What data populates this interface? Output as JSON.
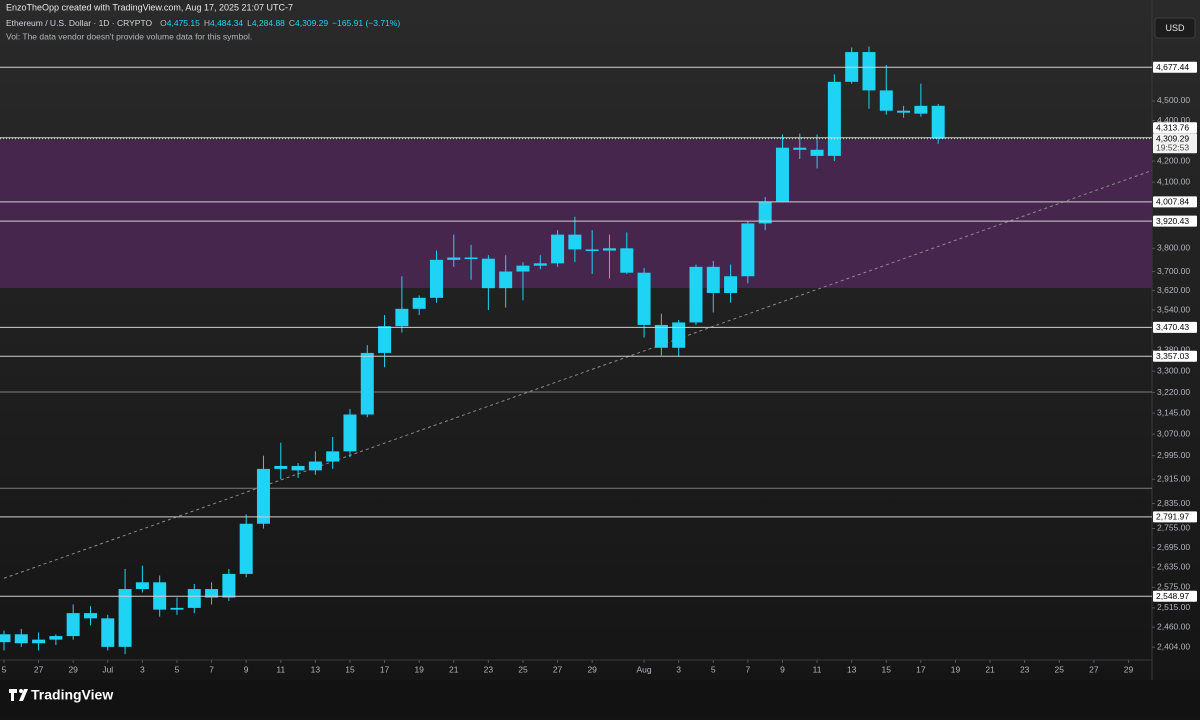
{
  "chart_data": {
    "type": "candlestick",
    "author_line": "EnzoTheOpp created with TradingView.com, Aug 17, 2025 21:07 UTC-7",
    "symbol": "Ethereum / U.S. Dollar · 1D · CRYPTO",
    "legend": [
      {
        "label": "O",
        "value": "4,475.15"
      },
      {
        "label": "H",
        "value": "4,484.34"
      },
      {
        "label": "L",
        "value": "4,284.88"
      },
      {
        "label": "C",
        "value": "4,309.29"
      }
    ],
    "change": "−165.91 (−3.71%)",
    "vol_note": "Vol: The data vendor doesn't provide volume data for this symbol.",
    "currency": "USD",
    "brand": "TradingView",
    "color": "#1ed3f3",
    "log_scale": true,
    "grid": false,
    "x": [
      0,
      1,
      2,
      3,
      4,
      5,
      6,
      7,
      8,
      9,
      10,
      11,
      12,
      13,
      14,
      15,
      16,
      17,
      18,
      19,
      20,
      21,
      22,
      23,
      24,
      25,
      26,
      27,
      28,
      29,
      30,
      31,
      32,
      33,
      34,
      35,
      36,
      37,
      38,
      39,
      40,
      41,
      42,
      43,
      44,
      45,
      46,
      47,
      48,
      49,
      50,
      51,
      52,
      53,
      54
    ],
    "open": [
      2418,
      2440,
      2415,
      2425,
      2435,
      2500,
      2485,
      2405,
      2570,
      2590,
      2510,
      2515,
      2570,
      2545,
      2615,
      2770,
      2950,
      2960,
      2945,
      2975,
      3010,
      3140,
      3370,
      3475,
      3545,
      3590,
      3750,
      3760,
      3755,
      3630,
      3700,
      3725,
      3735,
      3860,
      3795,
      3790,
      3800,
      3695,
      3480,
      3390,
      3490,
      3720,
      3610,
      3680,
      3910,
      4010,
      4265,
      4255,
      4225,
      4600,
      4760,
      4555,
      4450,
      4435,
      4475.15
    ],
    "high": [
      2450,
      2455,
      2445,
      2440,
      2525,
      2520,
      2495,
      2630,
      2640,
      2610,
      2545,
      2585,
      2590,
      2630,
      2800,
      2995,
      3040,
      2970,
      3010,
      3060,
      3160,
      3400,
      3520,
      3680,
      3600,
      3790,
      3860,
      3815,
      3770,
      3770,
      3740,
      3770,
      3880,
      3940,
      3880,
      3860,
      3870,
      3715,
      3525,
      3500,
      3730,
      3745,
      3730,
      3920,
      4030,
      4330,
      4335,
      4330,
      4640,
      4785,
      4790,
      4690,
      4475,
      4590,
      4484.34
    ],
    "low": [
      2395,
      2405,
      2395,
      2410,
      2425,
      2465,
      2395,
      2385,
      2560,
      2490,
      2495,
      2500,
      2525,
      2535,
      2605,
      2755,
      2915,
      2920,
      2930,
      2950,
      2990,
      3130,
      3315,
      3450,
      3520,
      3570,
      3720,
      3665,
      3540,
      3550,
      3580,
      3710,
      3720,
      3740,
      3690,
      3670,
      3690,
      3430,
      3360,
      3355,
      3480,
      3530,
      3570,
      3650,
      3880,
      4005,
      4210,
      4165,
      4200,
      4590,
      4460,
      4430,
      4415,
      4420,
      4284.88
    ],
    "close": [
      2440,
      2415,
      2425,
      2435,
      2500,
      2485,
      2405,
      2570,
      2590,
      2510,
      2515,
      2570,
      2545,
      2615,
      2770,
      2950,
      2960,
      2945,
      2975,
      3010,
      3140,
      3370,
      3475,
      3545,
      3590,
      3750,
      3760,
      3755,
      3630,
      3700,
      3725,
      3735,
      3860,
      3795,
      3790,
      3800,
      3695,
      3480,
      3390,
      3490,
      3720,
      3610,
      3680,
      3910,
      4010,
      4265,
      4255,
      4225,
      4600,
      4760,
      4555,
      4450,
      4440,
      4475,
      4309.29
    ],
    "xlim": [
      -0.23,
      66.36
    ],
    "xticks": [
      {
        "value": 0,
        "label": "5"
      },
      {
        "value": 2,
        "label": "27"
      },
      {
        "value": 4,
        "label": "29"
      },
      {
        "value": 6,
        "label": "Jul"
      },
      {
        "value": 8,
        "label": "3"
      },
      {
        "value": 10,
        "label": "5"
      },
      {
        "value": 12,
        "label": "7"
      },
      {
        "value": 14,
        "label": "9"
      },
      {
        "value": 16,
        "label": "11"
      },
      {
        "value": 18,
        "label": "13"
      },
      {
        "value": 20,
        "label": "15"
      },
      {
        "value": 22,
        "label": "17"
      },
      {
        "value": 24,
        "label": "19"
      },
      {
        "value": 26,
        "label": "21"
      },
      {
        "value": 28,
        "label": "23"
      },
      {
        "value": 30,
        "label": "25"
      },
      {
        "value": 32,
        "label": "27"
      },
      {
        "value": 34,
        "label": "29"
      },
      {
        "value": 37,
        "label": "Aug"
      },
      {
        "value": 39,
        "label": "3"
      },
      {
        "value": 41,
        "label": "5"
      },
      {
        "value": 43,
        "label": "7"
      },
      {
        "value": 45,
        "label": "9"
      },
      {
        "value": 47,
        "label": "11"
      },
      {
        "value": 49,
        "label": "13"
      },
      {
        "value": 51,
        "label": "15"
      },
      {
        "value": 53,
        "label": "17"
      },
      {
        "value": 55,
        "label": "19"
      },
      {
        "value": 57,
        "label": "21"
      },
      {
        "value": 59,
        "label": "23"
      },
      {
        "value": 61,
        "label": "25"
      },
      {
        "value": 63,
        "label": "27"
      },
      {
        "value": 65,
        "label": "29"
      }
    ],
    "ylim": [
      2369,
      5053
    ],
    "yticks": [
      {
        "value": 4500,
        "label": "4,500.00"
      },
      {
        "value": 4400,
        "label": "4,400.00"
      },
      {
        "value": 4200,
        "label": "4,200.00"
      },
      {
        "value": 4100,
        "label": "4,100.00"
      },
      {
        "value": 3800,
        "label": "3,800.00"
      },
      {
        "value": 3700,
        "label": "3,700.00"
      },
      {
        "value": 3620,
        "label": "3,620.00"
      },
      {
        "value": 3540,
        "label": "3,540.00"
      },
      {
        "value": 3380,
        "label": "3,380.00"
      },
      {
        "value": 3300,
        "label": "3,300.00"
      },
      {
        "value": 3220,
        "label": "3,220.00"
      },
      {
        "value": 3145,
        "label": "3,145.00"
      },
      {
        "value": 3070,
        "label": "3,070.00"
      },
      {
        "value": 2995,
        "label": "2,995.00"
      },
      {
        "value": 2915,
        "label": "2,915.00"
      },
      {
        "value": 2835,
        "label": "2,835.00"
      },
      {
        "value": 2755,
        "label": "2,755.00"
      },
      {
        "value": 2695,
        "label": "2,695.00"
      },
      {
        "value": 2635,
        "label": "2,635.00"
      },
      {
        "value": 2575,
        "label": "2,575.00"
      },
      {
        "value": 2515,
        "label": "2,515.00"
      },
      {
        "value": 2460,
        "label": "2,460.00"
      },
      {
        "value": 2404,
        "label": "2,404.00"
      }
    ],
    "levels": [
      {
        "value": 4677.44,
        "label": "4,677.44"
      },
      {
        "value": 4313.76,
        "label": "4,313.76"
      },
      {
        "value": 4007.84,
        "label": "4,007.84"
      },
      {
        "value": 3920.43,
        "label": "3,920.43"
      },
      {
        "value": 3470.43,
        "label": "3,470.43"
      },
      {
        "value": 3357.03,
        "label": "3,357.03"
      },
      {
        "value": 2791.97,
        "label": "2,791.97"
      },
      {
        "value": 2548.97,
        "label": "2,548.97"
      }
    ],
    "extra_lines": [
      3222,
      2885
    ],
    "zone": {
      "from": 3631,
      "to": 4303,
      "color": "#4b2753"
    },
    "current_price": {
      "value": 4309.29,
      "label": "4,309.29",
      "countdown": "19:52:53"
    },
    "trendline": {
      "x": [
        0,
        66.36
      ],
      "y": [
        2602,
        4155
      ]
    }
  }
}
